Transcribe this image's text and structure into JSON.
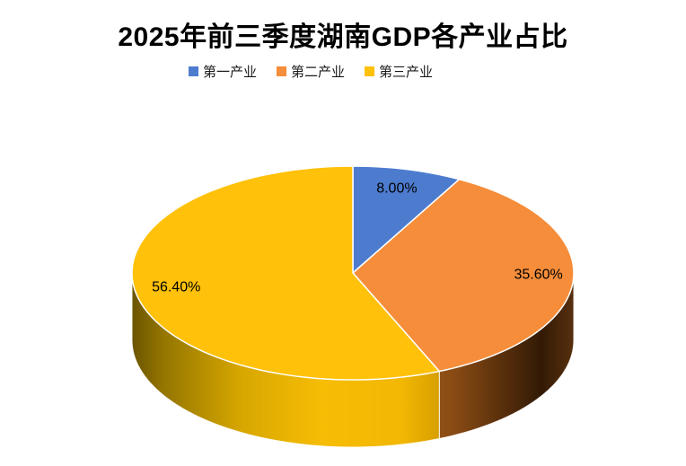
{
  "chart_data": {
    "type": "pie",
    "style": "3d",
    "title": "2025年前三季度湖南GDP各产业占比",
    "categories": [
      "第一产业",
      "第二产业",
      "第三产业"
    ],
    "values": [
      8.0,
      35.6,
      56.4
    ],
    "unit": "%",
    "data_labels": [
      "8.00%",
      "35.60%",
      "56.40%"
    ],
    "colors": [
      "#4d7ccf",
      "#f68d3a",
      "#ffc10a"
    ],
    "side_gradients": [
      null,
      [
        [
          "0",
          "#b5702d"
        ],
        [
          "0.45",
          "#8a4c14"
        ],
        [
          "0.85",
          "#331a05"
        ],
        [
          "1",
          "#57300f"
        ]
      ],
      [
        [
          "0",
          "#6b5400"
        ],
        [
          "0.10",
          "#937500"
        ],
        [
          "0.35",
          "#d6a600"
        ],
        [
          "0.62",
          "#f7bd05"
        ],
        [
          "0.88",
          "#f2b703"
        ],
        [
          "1",
          "#d79f00"
        ]
      ]
    ],
    "label_color": "#000000",
    "start_angle_deg": 0,
    "direction": "clockwise",
    "legend_position": "top",
    "background": "#ffffff"
  }
}
